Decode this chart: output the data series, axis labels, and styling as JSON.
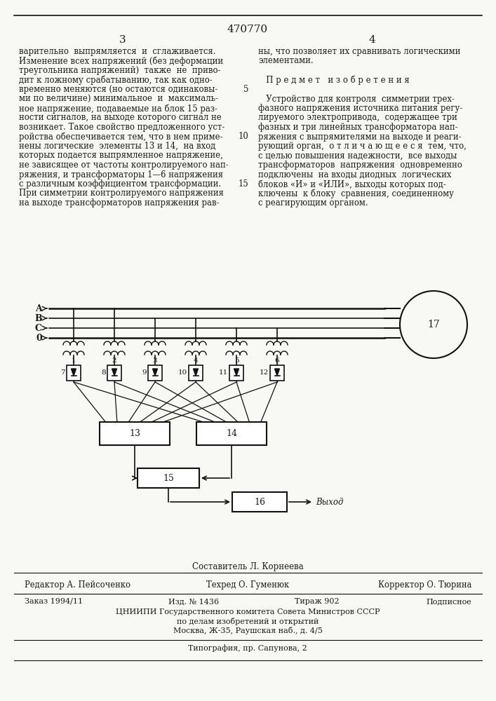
{
  "patent_number": "470770",
  "page_left": "3",
  "page_right": "4",
  "text_left": "варительно  выпрямляется  и  сглаживается.\nИзменение всех напряжений (без деформации\nтреугольника напряжений)  также  не  приво-\nдит к ложному срабатыванию, так как одно-\nвременно меняются (но остаются одинаковы-\nми по величине) минимальное  и  максималь-\nное напряжение, подаваемые на блок 15 раз-\nности сигналов, на выходе которого сигнал не\nвозникает. Такое свойство предложенного уст-\nройства обеспечивается тем, что в нем приме-\nнены логические  элементы 13 и 14,  на вход\nкоторых подается выпрямленное напряжение,\nне зависящее от частоты контролируемого нап-\nряжения, и трансформаторы 1—6 напряжения\nс различным коэффициентом трансформации.\nПри симметрии контролируемого напряжения\nна выходе трансформаторов напряжения рав-",
  "text_right": "ны, что позволяет их сравнивать логическими\nэлементами.\n\n   П р е д м е т   и з о б р е т е н и я\n\n   Устройство для контроля  симметрии трех-\nфазного напряжения источника питания регу-\nлируемого электропривода,  содержащее три\nфазных и три линейных трансформатора нап-\nряжения с выпрямителями на выходе и реаги-\nрующий орган,  о т л и ч а ю щ е е с я  тем, что,\nс целью повышения надежности,  все выходы\nтрансформаторов  напряжения  одновременно\nподключены  на входы диодных  логических\nблоков «И» и «ИЛИ», выходы которых под-\nключены  к блоку  сравнения, соединенному\nс реагирующим органом.",
  "composer": "Составитель Л. Корнеева",
  "editor": "Редактор А. Пейсоченко",
  "techred": "Техред О. Гуменюк",
  "corrector": "Корректор О. Тюрина",
  "order": "Заказ 1994/11",
  "izd": "Изд. № 1436",
  "tirazh": "Тираж 902",
  "podpisnoe": "Подписное",
  "cniipи": "ЦНИИПИ Государственного комитета Совета Министров СССР",
  "cniipи2": "по делам изобретений и открытий",
  "cniipи3": "Москва, Ж-35, Раушская наб., д. 4/5",
  "tipografiya": "Типография, пр. Сапунова, 2",
  "bg_color": "#f8f8f4",
  "text_color": "#1a1a1a",
  "line_color": "#111111"
}
